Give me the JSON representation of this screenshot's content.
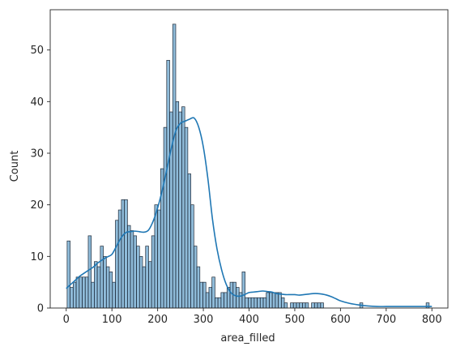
{
  "chart_data": {
    "type": "bar",
    "subtype": "histogram-with-kde",
    "xlabel": "area_filled",
    "ylabel": "Count",
    "xlim": [
      -35,
      835
    ],
    "ylim": [
      0,
      57.8
    ],
    "xticks": [
      0,
      100,
      200,
      300,
      400,
      500,
      600,
      700,
      800
    ],
    "yticks": [
      0,
      10,
      20,
      30,
      40,
      50
    ],
    "grid": false,
    "legend": "none",
    "colors": {
      "bar_fill": "#1f77b4",
      "bar_fill_opacity": 0.5,
      "bar_edge": "#1f2a38",
      "kde_line": "#1f77b4",
      "axes": "#262626"
    },
    "bin_width": 6.6,
    "bins_x0": [
      2.0,
      8.6,
      15.2,
      21.8,
      28.4,
      35.0,
      41.6,
      48.2,
      54.8,
      61.4,
      68.0,
      74.6,
      81.2,
      87.8,
      94.4,
      101.0,
      107.6,
      114.2,
      120.8,
      127.4,
      134.0,
      140.6,
      147.2,
      153.8,
      160.4,
      167.0,
      173.6,
      180.2,
      186.8,
      193.4,
      200.0,
      206.6,
      213.2,
      219.8,
      226.4,
      233.0,
      239.6,
      246.2,
      252.8,
      259.4,
      266.0,
      272.6,
      279.2,
      285.8,
      292.4,
      299.0,
      305.6,
      312.2,
      318.8,
      325.4,
      332.0,
      338.6,
      345.2,
      351.8,
      358.4,
      365.0,
      371.6,
      378.2,
      384.8,
      391.4,
      398.0,
      404.6,
      411.2,
      417.8,
      424.4,
      431.0,
      437.6,
      444.2,
      450.8,
      457.4,
      464.0,
      470.6,
      477.2,
      483.8,
      490.4,
      497.0,
      503.6,
      510.2,
      516.8,
      523.4,
      530.0,
      536.6,
      543.2,
      549.8,
      556.4,
      563.0,
      569.6,
      576.2,
      582.8,
      589.4,
      596.0,
      602.6,
      609.2,
      615.8,
      622.4,
      629.0,
      635.6,
      642.2,
      648.8,
      655.4,
      662.0,
      668.6,
      675.2,
      681.8,
      688.4,
      695.0,
      701.6,
      708.2,
      714.8,
      721.4,
      728.0,
      734.6,
      741.2,
      747.8,
      754.4,
      761.0,
      767.6,
      774.2,
      780.8,
      787.4
    ],
    "counts": [
      13,
      4,
      5,
      6,
      6,
      6,
      6,
      14,
      5,
      9,
      8,
      12,
      10,
      8,
      7,
      5,
      17,
      19,
      21,
      21,
      16,
      15,
      14,
      12,
      10,
      8,
      12,
      9,
      14,
      20,
      19,
      27,
      35,
      48,
      38,
      55,
      40,
      38,
      39,
      35,
      26,
      20,
      12,
      8,
      5,
      5,
      3,
      4,
      6,
      2,
      2,
      3,
      3,
      4,
      5,
      5,
      4,
      3,
      7,
      2,
      2,
      2,
      2,
      2,
      2,
      2,
      3,
      3,
      3,
      3,
      3,
      2,
      1,
      0,
      1,
      1,
      1,
      1,
      1,
      1,
      0,
      1,
      1,
      1,
      1,
      0,
      0,
      0,
      0,
      0,
      0,
      0,
      0,
      0,
      0,
      0,
      0,
      1,
      0,
      0,
      0,
      0,
      0,
      0,
      0,
      0,
      0,
      0,
      0,
      0,
      0,
      0,
      0,
      0,
      0,
      0,
      0,
      0,
      0,
      1
    ],
    "kde": {
      "x": [
        0,
        10,
        20,
        30,
        40,
        50,
        60,
        70,
        80,
        90,
        100,
        110,
        120,
        130,
        140,
        150,
        160,
        170,
        180,
        190,
        200,
        210,
        220,
        230,
        240,
        250,
        260,
        270,
        280,
        290,
        300,
        310,
        320,
        330,
        340,
        350,
        360,
        370,
        380,
        390,
        400,
        410,
        420,
        430,
        440,
        450,
        460,
        470,
        480,
        490,
        500,
        510,
        520,
        530,
        540,
        550,
        560,
        570,
        580,
        590,
        600,
        620,
        640,
        660,
        680,
        700,
        720,
        740,
        760,
        780,
        800
      ],
      "y": [
        3.8,
        4.6,
        5.4,
        6.2,
        6.8,
        7.4,
        8.0,
        8.8,
        9.4,
        9.9,
        10.4,
        12.0,
        13.6,
        14.6,
        14.8,
        14.9,
        14.8,
        14.7,
        15.1,
        16.8,
        19.4,
        22.8,
        26.8,
        31.0,
        34.4,
        35.8,
        36.2,
        36.6,
        36.8,
        35.0,
        31.2,
        25.0,
        17.2,
        11.4,
        7.4,
        4.6,
        3.0,
        2.4,
        2.3,
        2.6,
        3.0,
        3.1,
        3.2,
        3.3,
        3.2,
        3.1,
        2.8,
        2.7,
        2.6,
        2.6,
        2.6,
        2.5,
        2.6,
        2.7,
        2.8,
        2.8,
        2.7,
        2.5,
        2.2,
        1.8,
        1.4,
        0.9,
        0.6,
        0.4,
        0.3,
        0.3,
        0.3,
        0.3,
        0.3,
        0.3,
        0.3
      ]
    }
  }
}
